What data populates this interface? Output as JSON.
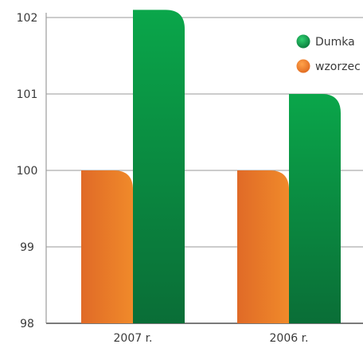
{
  "chart_data": {
    "type": "bar",
    "categories": [
      "2007 r.",
      "2006 r."
    ],
    "series": [
      {
        "name": "wzorzec",
        "values": [
          100,
          100
        ],
        "color": "#e9762a"
      },
      {
        "name": "Dumka",
        "values": [
          102.1,
          101
        ],
        "color": "#129a47"
      }
    ],
    "ylim": [
      98,
      102
    ],
    "yticks": [
      "98",
      "99",
      "100",
      "101",
      "102"
    ],
    "grid": true,
    "legend_position": "top-right"
  }
}
